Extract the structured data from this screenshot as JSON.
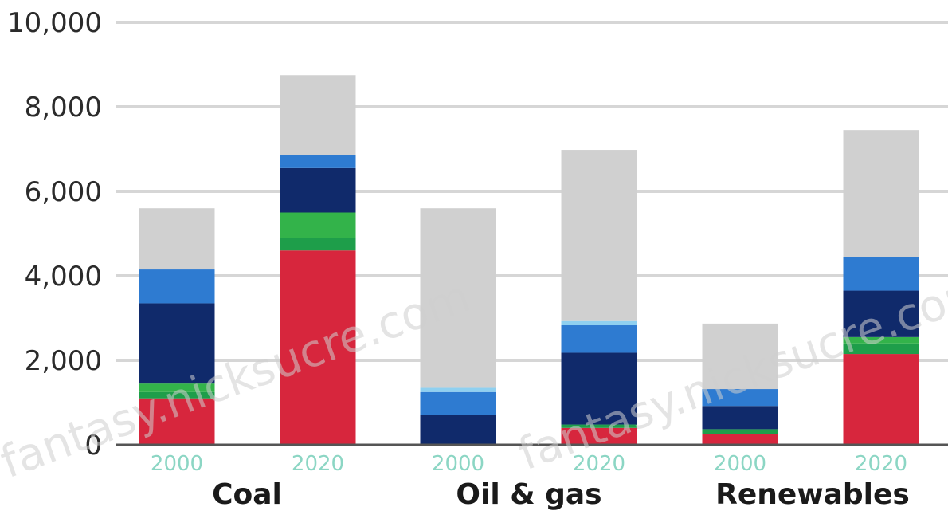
{
  "chart_data": {
    "type": "bar",
    "stacked": true,
    "ylim": [
      0,
      10000
    ],
    "yticks": [
      "0",
      "2,000",
      "4,000",
      "6,000",
      "8,000",
      "10,000"
    ],
    "grid": true,
    "groups": [
      "Coal",
      "Oil & gas",
      "Renewables"
    ],
    "categories": [
      "2000",
      "2020",
      "2000",
      "2020",
      "2000",
      "2020"
    ],
    "category_group": [
      0,
      0,
      1,
      1,
      2,
      2
    ],
    "series": [
      {
        "color": "#d7263d",
        "values": [
          1100,
          4600,
          0,
          400,
          250,
          2150
        ]
      },
      {
        "color": "#1e9e4a",
        "values": [
          150,
          300,
          0,
          80,
          120,
          250
        ]
      },
      {
        "color": "#33b34a",
        "values": [
          200,
          600,
          0,
          0,
          0,
          150
        ]
      },
      {
        "color": "#102a6b",
        "values": [
          1900,
          1050,
          700,
          1700,
          550,
          1100
        ]
      },
      {
        "color": "#2e7bd1",
        "values": [
          800,
          300,
          550,
          650,
          400,
          800
        ]
      },
      {
        "color": "#8fd0f0",
        "values": [
          0,
          0,
          100,
          100,
          0,
          0
        ]
      },
      {
        "color": "#d0d0d0",
        "values": [
          1450,
          1900,
          4250,
          4050,
          1550,
          3000
        ]
      }
    ],
    "year_label_color": "#8cd6c4",
    "axis_color": "#555555",
    "grid_color": "#d6d6d6"
  },
  "watermarks": [
    "fantasy.nicksucre.com",
    "fantasy.nicksucre.com"
  ]
}
